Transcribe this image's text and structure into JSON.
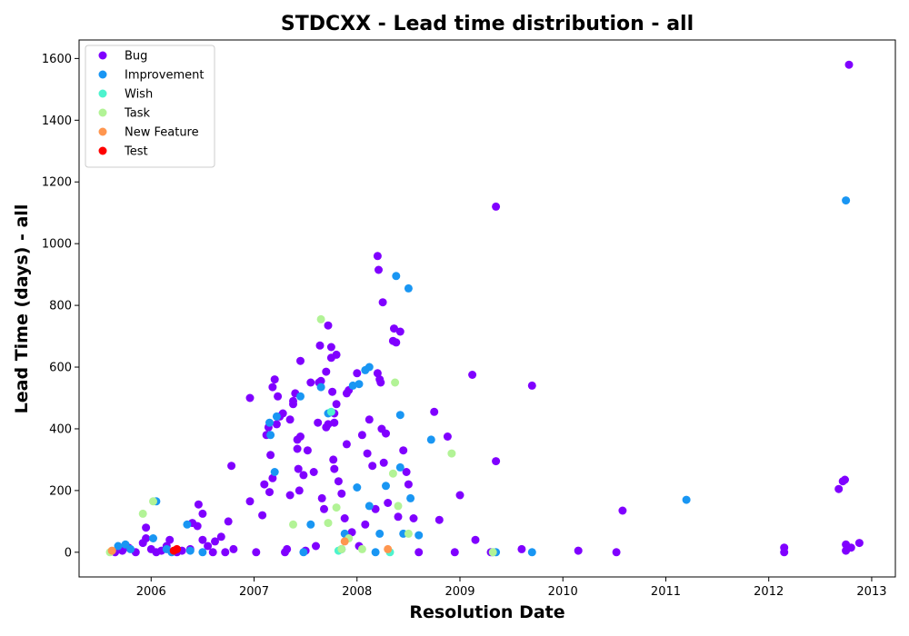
{
  "chart_data": {
    "type": "scatter",
    "title": "STDCXX - Lead time distribution - all",
    "xlabel": "Resolution Date",
    "ylabel": "Lead Time (days) - all",
    "xlim": [
      2005.3,
      2013.23
    ],
    "ylim": [
      -80,
      1660
    ],
    "x_ticks": [
      2006,
      2007,
      2008,
      2009,
      2010,
      2011,
      2012,
      2013
    ],
    "x_tick_labels": [
      "2006",
      "2007",
      "2008",
      "2009",
      "2010",
      "2011",
      "2012",
      "2013"
    ],
    "y_ticks": [
      0,
      200,
      400,
      600,
      800,
      1000,
      1200,
      1400,
      1600
    ],
    "y_tick_labels": [
      "0",
      "200",
      "400",
      "600",
      "800",
      "1000",
      "1200",
      "1400",
      "1600"
    ],
    "grid": false,
    "legend_position": "top-left",
    "series": [
      {
        "name": "Bug",
        "color": "#8000ff",
        "points": [
          [
            2005.65,
            0
          ],
          [
            2005.72,
            5
          ],
          [
            2005.78,
            15
          ],
          [
            2005.85,
            0
          ],
          [
            2005.92,
            30
          ],
          [
            2005.95,
            80
          ],
          [
            2005.95,
            45
          ],
          [
            2006.0,
            10
          ],
          [
            2006.05,
            0
          ],
          [
            2006.1,
            5
          ],
          [
            2006.15,
            20
          ],
          [
            2006.18,
            40
          ],
          [
            2006.25,
            0
          ],
          [
            2006.3,
            5
          ],
          [
            2006.38,
            10
          ],
          [
            2006.4,
            95
          ],
          [
            2006.45,
            85
          ],
          [
            2006.46,
            155
          ],
          [
            2006.5,
            125
          ],
          [
            2006.5,
            40
          ],
          [
            2006.55,
            20
          ],
          [
            2006.6,
            0
          ],
          [
            2006.62,
            35
          ],
          [
            2006.68,
            50
          ],
          [
            2006.72,
            0
          ],
          [
            2006.75,
            100
          ],
          [
            2006.78,
            280
          ],
          [
            2006.8,
            10
          ],
          [
            2006.96,
            500
          ],
          [
            2006.96,
            165
          ],
          [
            2007.02,
            0
          ],
          [
            2007.08,
            120
          ],
          [
            2007.1,
            220
          ],
          [
            2007.12,
            380
          ],
          [
            2007.14,
            405
          ],
          [
            2007.15,
            195
          ],
          [
            2007.16,
            315
          ],
          [
            2007.18,
            535
          ],
          [
            2007.18,
            240
          ],
          [
            2007.2,
            560
          ],
          [
            2007.22,
            415
          ],
          [
            2007.23,
            505
          ],
          [
            2007.25,
            440
          ],
          [
            2007.28,
            450
          ],
          [
            2007.3,
            0
          ],
          [
            2007.32,
            10
          ],
          [
            2007.35,
            185
          ],
          [
            2007.35,
            430
          ],
          [
            2007.38,
            480
          ],
          [
            2007.38,
            490
          ],
          [
            2007.4,
            515
          ],
          [
            2007.42,
            335
          ],
          [
            2007.42,
            365
          ],
          [
            2007.43,
            270
          ],
          [
            2007.44,
            200
          ],
          [
            2007.45,
            620
          ],
          [
            2007.45,
            375
          ],
          [
            2007.48,
            250
          ],
          [
            2007.5,
            5
          ],
          [
            2007.52,
            330
          ],
          [
            2007.55,
            550
          ],
          [
            2007.58,
            260
          ],
          [
            2007.6,
            20
          ],
          [
            2007.62,
            420
          ],
          [
            2007.63,
            550
          ],
          [
            2007.64,
            670
          ],
          [
            2007.65,
            555
          ],
          [
            2007.66,
            175
          ],
          [
            2007.68,
            140
          ],
          [
            2007.7,
            585
          ],
          [
            2007.7,
            405
          ],
          [
            2007.72,
            735
          ],
          [
            2007.72,
            415
          ],
          [
            2007.75,
            665
          ],
          [
            2007.75,
            630
          ],
          [
            2007.76,
            520
          ],
          [
            2007.77,
            300
          ],
          [
            2007.78,
            270
          ],
          [
            2007.78,
            450
          ],
          [
            2007.78,
            420
          ],
          [
            2007.8,
            640
          ],
          [
            2007.8,
            480
          ],
          [
            2007.82,
            230
          ],
          [
            2007.85,
            190
          ],
          [
            2007.88,
            110
          ],
          [
            2007.9,
            350
          ],
          [
            2007.9,
            515
          ],
          [
            2007.92,
            525
          ],
          [
            2007.95,
            65
          ],
          [
            2008.0,
            580
          ],
          [
            2008.02,
            20
          ],
          [
            2008.05,
            380
          ],
          [
            2008.08,
            90
          ],
          [
            2008.1,
            320
          ],
          [
            2008.12,
            430
          ],
          [
            2008.15,
            280
          ],
          [
            2008.18,
            140
          ],
          [
            2008.2,
            960
          ],
          [
            2008.2,
            580
          ],
          [
            2008.21,
            915
          ],
          [
            2008.22,
            560
          ],
          [
            2008.23,
            550
          ],
          [
            2008.24,
            400
          ],
          [
            2008.25,
            810
          ],
          [
            2008.26,
            290
          ],
          [
            2008.28,
            385
          ],
          [
            2008.3,
            160
          ],
          [
            2008.35,
            685
          ],
          [
            2008.36,
            725
          ],
          [
            2008.38,
            680
          ],
          [
            2008.4,
            115
          ],
          [
            2008.42,
            715
          ],
          [
            2008.45,
            330
          ],
          [
            2008.48,
            260
          ],
          [
            2008.5,
            220
          ],
          [
            2008.55,
            110
          ],
          [
            2008.6,
            0
          ],
          [
            2008.75,
            455
          ],
          [
            2008.8,
            105
          ],
          [
            2008.88,
            375
          ],
          [
            2008.95,
            0
          ],
          [
            2009.0,
            185
          ],
          [
            2009.12,
            575
          ],
          [
            2009.15,
            40
          ],
          [
            2009.3,
            0
          ],
          [
            2009.35,
            1120
          ],
          [
            2009.35,
            295
          ],
          [
            2009.6,
            10
          ],
          [
            2009.7,
            540
          ],
          [
            2010.15,
            5
          ],
          [
            2010.52,
            0
          ],
          [
            2010.58,
            135
          ],
          [
            2012.15,
            15
          ],
          [
            2012.15,
            0
          ],
          [
            2012.68,
            205
          ],
          [
            2012.72,
            230
          ],
          [
            2012.74,
            235
          ],
          [
            2012.75,
            25
          ],
          [
            2012.75,
            5
          ],
          [
            2012.78,
            1580
          ],
          [
            2012.8,
            15
          ],
          [
            2012.88,
            30
          ]
        ]
      },
      {
        "name": "Improvement",
        "color": "#1996f3",
        "points": [
          [
            2005.68,
            20
          ],
          [
            2005.75,
            25
          ],
          [
            2005.8,
            10
          ],
          [
            2006.02,
            45
          ],
          [
            2006.05,
            165
          ],
          [
            2006.15,
            10
          ],
          [
            2006.2,
            0
          ],
          [
            2006.35,
            90
          ],
          [
            2006.38,
            5
          ],
          [
            2006.5,
            0
          ],
          [
            2007.15,
            420
          ],
          [
            2007.16,
            380
          ],
          [
            2007.2,
            260
          ],
          [
            2007.22,
            440
          ],
          [
            2007.45,
            505
          ],
          [
            2007.48,
            0
          ],
          [
            2007.55,
            90
          ],
          [
            2007.65,
            535
          ],
          [
            2007.72,
            450
          ],
          [
            2007.85,
            10
          ],
          [
            2007.88,
            60
          ],
          [
            2007.96,
            540
          ],
          [
            2008.0,
            210
          ],
          [
            2008.02,
            545
          ],
          [
            2008.08,
            590
          ],
          [
            2008.12,
            600
          ],
          [
            2008.12,
            150
          ],
          [
            2008.18,
            0
          ],
          [
            2008.22,
            60
          ],
          [
            2008.28,
            215
          ],
          [
            2008.38,
            895
          ],
          [
            2008.42,
            275
          ],
          [
            2008.42,
            445
          ],
          [
            2008.45,
            60
          ],
          [
            2008.5,
            855
          ],
          [
            2008.52,
            175
          ],
          [
            2008.6,
            55
          ],
          [
            2008.72,
            365
          ],
          [
            2009.32,
            0
          ],
          [
            2009.35,
            0
          ],
          [
            2009.7,
            0
          ],
          [
            2011.2,
            170
          ],
          [
            2012.75,
            1140
          ]
        ]
      },
      {
        "name": "Wish",
        "color": "#4df3ce",
        "points": [
          [
            2007.75,
            455
          ],
          [
            2007.82,
            5
          ],
          [
            2008.32,
            0
          ]
        ]
      },
      {
        "name": "Task",
        "color": "#b2f396",
        "points": [
          [
            2005.6,
            0
          ],
          [
            2005.92,
            125
          ],
          [
            2006.02,
            165
          ],
          [
            2007.38,
            90
          ],
          [
            2007.65,
            755
          ],
          [
            2007.72,
            95
          ],
          [
            2007.8,
            145
          ],
          [
            2007.85,
            10
          ],
          [
            2007.92,
            45
          ],
          [
            2008.05,
            10
          ],
          [
            2008.35,
            255
          ],
          [
            2008.37,
            550
          ],
          [
            2008.4,
            150
          ],
          [
            2008.5,
            60
          ],
          [
            2008.92,
            320
          ],
          [
            2009.32,
            0
          ]
        ]
      },
      {
        "name": "New Feature",
        "color": "#ff964f",
        "points": [
          [
            2005.62,
            5
          ],
          [
            2007.88,
            35
          ],
          [
            2008.3,
            10
          ]
        ]
      },
      {
        "name": "Test",
        "color": "#ff0000",
        "points": [
          [
            2006.22,
            5
          ],
          [
            2006.25,
            10
          ]
        ]
      }
    ]
  }
}
